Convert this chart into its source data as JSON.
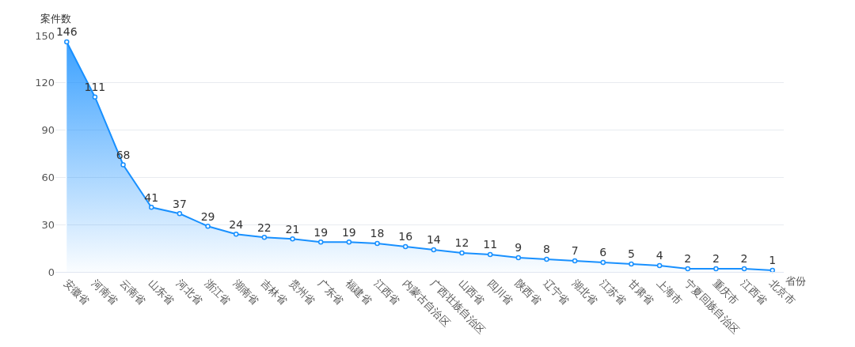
{
  "chart_data": {
    "type": "area",
    "xlabel": "省份",
    "ylabel": "案件数",
    "categories": [
      "安徽省",
      "河南省",
      "云南省",
      "山东省",
      "河北省",
      "浙江省",
      "湖南省",
      "吉林省",
      "贵州省",
      "广东省",
      "福建省",
      "江西省",
      "内蒙古自治区",
      "广西壮族自治区",
      "山西省",
      "四川省",
      "陕西省",
      "辽宁省",
      "湖北省",
      "江苏省",
      "甘肃省",
      "上海市",
      "宁夏回族自治区",
      "重庆市",
      "江西省",
      "北京市"
    ],
    "values": [
      146,
      111,
      68,
      41,
      37,
      29,
      24,
      22,
      21,
      19,
      19,
      18,
      16,
      14,
      12,
      11,
      9,
      8,
      7,
      6,
      5,
      4,
      2,
      2,
      2,
      1
    ],
    "color": "#1890ff",
    "ylim": [
      0,
      150
    ],
    "yticks": [
      0,
      30,
      60,
      90,
      120,
      150
    ],
    "grid": "y",
    "data_labels": true,
    "marker": "circle",
    "legend": false
  }
}
